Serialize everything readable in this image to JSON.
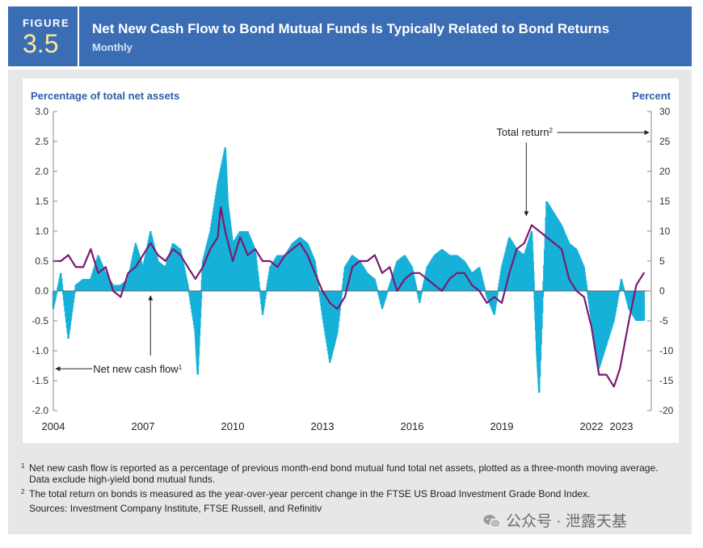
{
  "figure": {
    "label": "FIGURE",
    "number": "3.5"
  },
  "title": "Net New Cash Flow to Bond Mutual Funds Is Typically Related to Bond Returns",
  "subtitle": "Monthly",
  "colors": {
    "header": "#3b6db5",
    "bars": "#16b1d8",
    "line": "#7b1a70",
    "axis_label": "#2e5ea8"
  },
  "chart_data": {
    "type": "bar",
    "title": "Net New Cash Flow to Bond Mutual Funds Is Typically Related to Bond Returns",
    "left_axis_label": "Percentage of total net assets",
    "right_axis_label": "Percent",
    "left_ylim": [
      -2.0,
      3.0
    ],
    "right_ylim": [
      -20,
      30
    ],
    "left_ticks": [
      "3.0",
      "2.5",
      "2.0",
      "1.5",
      "1.0",
      "0.5",
      "0.0",
      "-0.5",
      "-1.0",
      "-1.5",
      "-2.0"
    ],
    "right_ticks": [
      "30",
      "25",
      "20",
      "15",
      "10",
      "5",
      "0",
      "-5",
      "-10",
      "-15",
      "-20"
    ],
    "x_range": [
      2004.0,
      2024.0
    ],
    "x_ticks": [
      {
        "label": "2004",
        "x": 2004.0
      },
      {
        "label": "2007",
        "x": 2007.0
      },
      {
        "label": "2010",
        "x": 2010.0
      },
      {
        "label": "2013",
        "x": 2013.0
      },
      {
        "label": "2016",
        "x": 2016.0
      },
      {
        "label": "2019",
        "x": 2019.0
      },
      {
        "label": "2022",
        "x": 2022.0
      },
      {
        "label": "2023",
        "x": 2023.0
      }
    ],
    "annotations": [
      {
        "text": "Net new cash flow",
        "sup": "1"
      },
      {
        "text": "Total return",
        "sup": "2"
      }
    ],
    "series": [
      {
        "name": "Net new cash flow",
        "axis": "left",
        "kind": "bar",
        "x": [
          2004.0,
          2004.25,
          2004.5,
          2004.75,
          2005.0,
          2005.25,
          2005.5,
          2005.75,
          2006.0,
          2006.25,
          2006.5,
          2006.75,
          2007.0,
          2007.25,
          2007.5,
          2007.75,
          2008.0,
          2008.25,
          2008.5,
          2008.75,
          2008.83,
          2009.0,
          2009.25,
          2009.5,
          2009.75,
          2009.83,
          2010.0,
          2010.25,
          2010.5,
          2010.75,
          2011.0,
          2011.25,
          2011.5,
          2011.75,
          2012.0,
          2012.25,
          2012.5,
          2012.75,
          2013.0,
          2013.25,
          2013.5,
          2013.75,
          2014.0,
          2014.25,
          2014.5,
          2014.75,
          2015.0,
          2015.25,
          2015.5,
          2015.75,
          2016.0,
          2016.25,
          2016.5,
          2016.75,
          2017.0,
          2017.25,
          2017.5,
          2017.75,
          2018.0,
          2018.25,
          2018.5,
          2018.75,
          2019.0,
          2019.25,
          2019.5,
          2019.75,
          2020.0,
          2020.17,
          2020.25,
          2020.5,
          2020.75,
          2021.0,
          2021.25,
          2021.5,
          2021.75,
          2022.0,
          2022.25,
          2022.5,
          2022.75,
          2023.0,
          2023.25,
          2023.5,
          2023.75
        ],
        "values": [
          -0.3,
          0.3,
          -0.8,
          0.1,
          0.2,
          0.2,
          0.6,
          0.3,
          0.1,
          0.1,
          0.2,
          0.8,
          0.4,
          1.0,
          0.5,
          0.4,
          0.8,
          0.7,
          0.1,
          -0.7,
          -1.4,
          0.5,
          1.0,
          1.8,
          2.4,
          1.5,
          0.8,
          1.0,
          1.0,
          0.7,
          -0.4,
          0.4,
          0.6,
          0.6,
          0.8,
          0.9,
          0.8,
          0.5,
          -0.4,
          -1.2,
          -0.7,
          0.4,
          0.6,
          0.5,
          0.3,
          0.2,
          -0.3,
          0.1,
          0.5,
          0.6,
          0.4,
          -0.2,
          0.4,
          0.6,
          0.7,
          0.6,
          0.6,
          0.5,
          0.3,
          0.4,
          -0.1,
          -0.4,
          0.4,
          0.9,
          0.7,
          0.6,
          1.0,
          -1.0,
          -1.7,
          1.5,
          1.3,
          1.1,
          0.8,
          0.7,
          0.4,
          -0.5,
          -1.3,
          -0.9,
          -0.5,
          0.2,
          -0.3,
          -0.5,
          -0.5
        ]
      },
      {
        "name": "Total return",
        "axis": "right",
        "kind": "line",
        "x": [
          2004.0,
          2004.25,
          2004.5,
          2004.75,
          2005.0,
          2005.25,
          2005.5,
          2005.75,
          2006.0,
          2006.25,
          2006.5,
          2006.75,
          2007.0,
          2007.25,
          2007.5,
          2007.75,
          2008.0,
          2008.25,
          2008.5,
          2008.75,
          2009.0,
          2009.25,
          2009.5,
          2009.6,
          2009.75,
          2010.0,
          2010.25,
          2010.5,
          2010.75,
          2011.0,
          2011.25,
          2011.5,
          2011.75,
          2012.0,
          2012.25,
          2012.5,
          2012.75,
          2013.0,
          2013.25,
          2013.5,
          2013.75,
          2014.0,
          2014.25,
          2014.5,
          2014.75,
          2015.0,
          2015.25,
          2015.5,
          2015.75,
          2016.0,
          2016.25,
          2016.5,
          2016.75,
          2017.0,
          2017.25,
          2017.5,
          2017.75,
          2018.0,
          2018.25,
          2018.5,
          2018.75,
          2019.0,
          2019.25,
          2019.5,
          2019.75,
          2020.0,
          2020.25,
          2020.5,
          2020.75,
          2021.0,
          2021.25,
          2021.5,
          2021.75,
          2022.0,
          2022.25,
          2022.5,
          2022.75,
          2022.95,
          2023.25,
          2023.5,
          2023.75
        ],
        "values": [
          5,
          5,
          6,
          4,
          4,
          7,
          3,
          4,
          0,
          -1,
          3,
          4,
          6,
          8,
          6,
          5,
          7,
          6,
          4,
          2,
          4,
          7,
          9,
          14,
          10,
          5,
          9,
          6,
          7,
          5,
          5,
          4,
          6,
          7,
          8,
          6,
          3,
          0,
          -2,
          -3,
          -1,
          4,
          5,
          5,
          6,
          3,
          4,
          0,
          2,
          3,
          3,
          2,
          1,
          0,
          2,
          3,
          3,
          1,
          0,
          -2,
          -1,
          -2,
          3,
          7,
          8,
          11,
          10,
          9,
          8,
          7,
          2,
          0,
          -1,
          -6,
          -14,
          -14,
          -16,
          -13,
          -5,
          1,
          3
        ]
      }
    ]
  },
  "footnotes": [
    {
      "marker": "1",
      "text": "Net new cash flow is reported as a percentage of previous month-end bond mutual fund total net assets, plotted as a three-month moving average. Data exclude high-yield bond mutual funds."
    },
    {
      "marker": "2",
      "text": "The total return on bonds is measured as the year-over-year percent change in the FTSE US Broad Investment Grade Bond Index."
    }
  ],
  "sources": "Sources: Investment Company Institute, FTSE Russell, and Refinitiv",
  "watermark": "公众号 · 泄露天基"
}
